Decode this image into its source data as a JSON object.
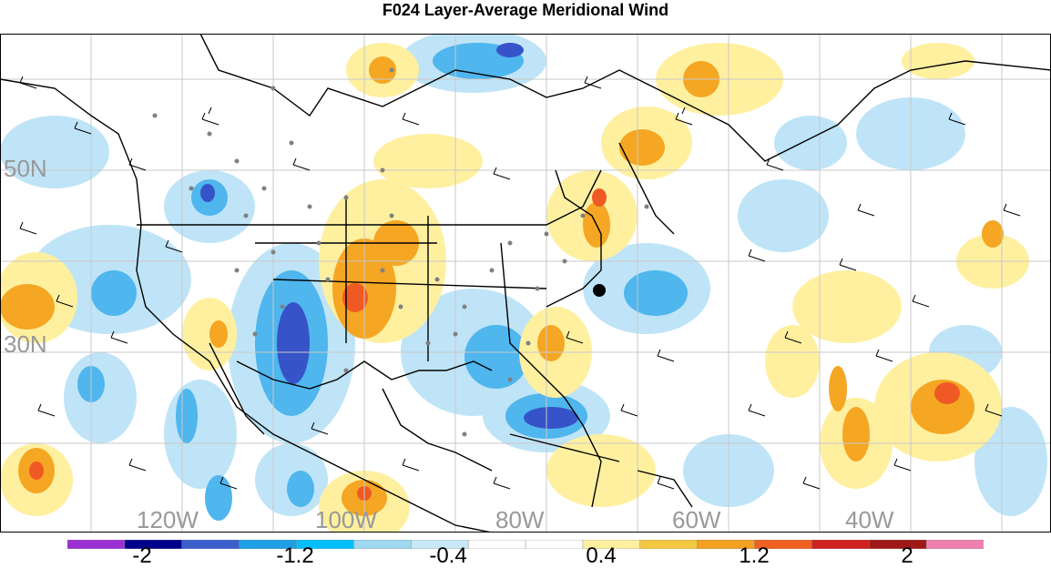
{
  "title": "F024 Layer-Average Meridional Wind",
  "map": {
    "lat_labels": [
      "50N",
      "30N"
    ],
    "lon_labels": [
      "120W",
      "100W",
      "80W",
      "60W",
      "40W"
    ],
    "label_color": "#999999",
    "gridline_color": "#c8c8c8",
    "coastline_color": "#000000",
    "marker": "black-dot",
    "station_dot_color": "#808080",
    "wind_barbs": "black"
  },
  "colorbar": {
    "tick_labels": [
      "-2",
      "-1.2",
      "-0.4",
      "0.4",
      "1.2",
      "2"
    ],
    "colors": [
      "#9b30d4",
      "#00008b",
      "#3a5fcd",
      "#1f9fe6",
      "#00bfff",
      "#a0d8f0",
      "#c8e8f8",
      "#ffffff",
      "#ffffff",
      "#fff0a0",
      "#f5c842",
      "#f4a020",
      "#f06020",
      "#d02020",
      "#a01818",
      "#f080b0"
    ]
  }
}
